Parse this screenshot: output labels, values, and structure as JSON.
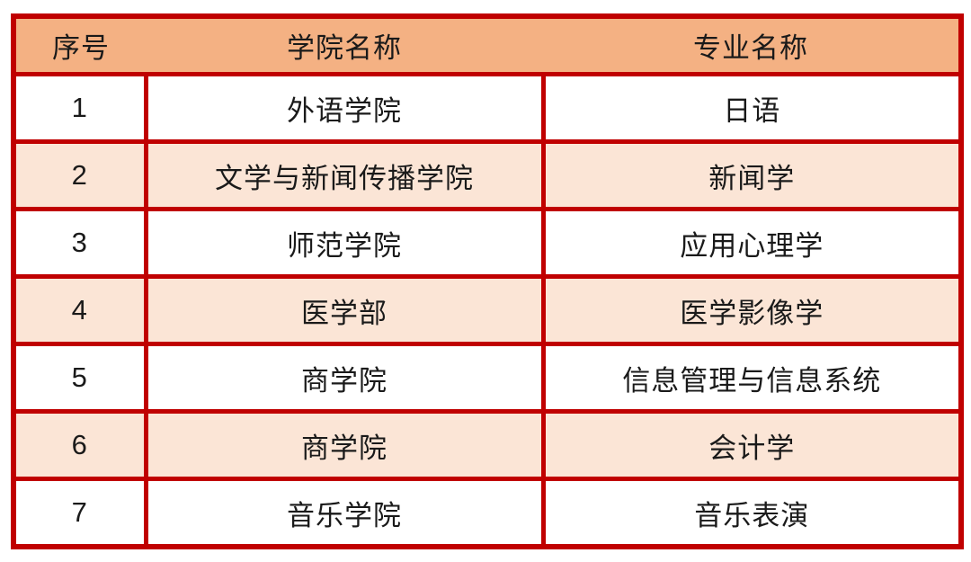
{
  "chart_data": {
    "type": "table",
    "columns": [
      "序号",
      "学院名称",
      "专业名称"
    ],
    "rows": [
      [
        "1",
        "外语学院",
        "日语"
      ],
      [
        "2",
        "文学与新闻传播学院",
        "新闻学"
      ],
      [
        "3",
        "师范学院",
        "应用心理学"
      ],
      [
        "4",
        "医学部",
        "医学影像学"
      ],
      [
        "5",
        "商学院",
        "信息管理与信息系统"
      ],
      [
        "6",
        "商学院",
        "会计学"
      ],
      [
        "7",
        "音乐学院",
        "音乐表演"
      ]
    ],
    "layout_hints": {
      "header_divider_lines": false,
      "body_divider_lines": true,
      "alternating_rows": true
    }
  },
  "colors": {
    "border": "#C00000",
    "header_bg": "#F4B183",
    "row_bg": "#FFFFFF",
    "row_alt_bg": "#FBE5D6",
    "text": "#1A1A1A",
    "page_bg": "#FFFFFF"
  }
}
